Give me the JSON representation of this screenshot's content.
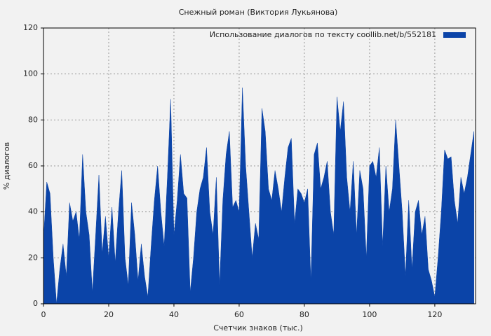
{
  "chart_data": {
    "type": "area",
    "title": "Снежный роман (Виктория Лукьянова)",
    "x_label": "Счетчик знаков (тыс.)",
    "y_label": "% диалогов",
    "x": [
      0,
      1,
      2,
      3,
      4,
      5,
      6,
      7,
      8,
      9,
      10,
      11,
      12,
      13,
      14,
      15,
      16,
      17,
      18,
      19,
      20,
      21,
      22,
      23,
      24,
      25,
      26,
      27,
      28,
      29,
      30,
      31,
      32,
      33,
      34,
      35,
      36,
      37,
      38,
      39,
      40,
      41,
      42,
      43,
      44,
      45,
      46,
      47,
      48,
      49,
      50,
      51,
      52,
      53,
      54,
      55,
      56,
      57,
      58,
      59,
      60,
      61,
      62,
      63,
      64,
      65,
      66,
      67,
      68,
      69,
      70,
      71,
      72,
      73,
      74,
      75,
      76,
      77,
      78,
      79,
      80,
      81,
      82,
      83,
      84,
      85,
      86,
      87,
      88,
      89,
      90,
      91,
      92,
      93,
      94,
      95,
      96,
      97,
      98,
      99,
      100,
      101,
      102,
      103,
      104,
      105,
      106,
      107,
      108,
      109,
      110,
      111,
      112,
      113,
      114,
      115,
      116,
      117,
      118,
      119,
      120,
      121,
      122,
      123,
      124,
      125,
      126,
      127,
      128,
      129,
      130,
      131,
      132
    ],
    "series": [
      {
        "name": "Использование диалогов по тексту  coollib.net/b/552181",
        "color": "#0b44a8",
        "values": [
          28,
          53,
          48,
          20,
          0,
          15,
          26,
          12,
          44,
          36,
          40,
          28,
          65,
          40,
          30,
          5,
          30,
          56,
          22,
          38,
          20,
          42,
          18,
          40,
          58,
          20,
          8,
          44,
          30,
          10,
          26,
          12,
          3,
          25,
          45,
          60,
          40,
          25,
          55,
          89,
          30,
          45,
          65,
          48,
          46,
          5,
          20,
          40,
          50,
          55,
          68,
          40,
          30,
          55,
          8,
          45,
          65,
          75,
          42,
          45,
          40,
          94,
          60,
          40,
          20,
          35,
          28,
          85,
          75,
          50,
          45,
          58,
          50,
          40,
          55,
          68,
          72,
          35,
          50,
          48,
          44,
          50,
          10,
          65,
          70,
          50,
          55,
          62,
          40,
          30,
          90,
          75,
          88,
          55,
          40,
          62,
          30,
          58,
          50,
          20,
          60,
          62,
          55,
          68,
          25,
          60,
          40,
          50,
          80,
          60,
          40,
          12,
          45,
          15,
          40,
          45,
          30,
          38,
          15,
          10,
          3,
          20,
          40,
          67,
          63,
          64,
          45,
          35,
          55,
          48,
          55,
          65,
          75
        ]
      }
    ],
    "xlim": [
      0,
      132.5
    ],
    "ylim": [
      0,
      120
    ],
    "xticks": [
      0,
      20,
      40,
      60,
      80,
      100,
      120
    ],
    "yticks": [
      0,
      20,
      40,
      60,
      80,
      100,
      120
    ],
    "grid": true,
    "legend": "upper right"
  }
}
